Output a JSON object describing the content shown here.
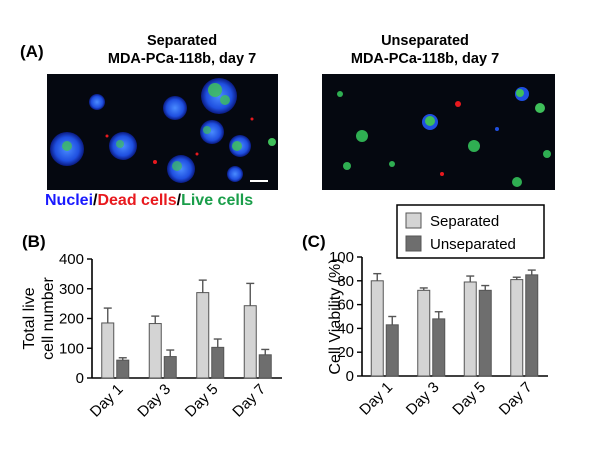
{
  "panel_a": {
    "label": "(A)",
    "left_image": {
      "title_line1": "Separated",
      "title_line2": "MDA-PCa-118b, day 7"
    },
    "right_image": {
      "title_line1": "Unseparated",
      "title_line2": "MDA-PCa-118b, day 7"
    },
    "stain_legend": [
      {
        "text": "Nuclei",
        "color": "#1a1aff"
      },
      {
        "text": "/",
        "color": "#000000"
      },
      {
        "text": "Dead cells",
        "color": "#e8191e"
      },
      {
        "text": "/",
        "color": "#000000"
      },
      {
        "text": "Live cells",
        "color": "#1a9e4a"
      }
    ]
  },
  "panel_b": {
    "label": "(B)"
  },
  "panel_c": {
    "label": "(C)"
  },
  "colors": {
    "separated": "#d4d4d4",
    "unseparated": "#6e6e6e",
    "edge": "#555555"
  },
  "chart_data": [
    {
      "type": "bar",
      "title": "",
      "xlabel": "",
      "ylabel": "Total live cell number",
      "categories": [
        "Day 1",
        "Day 3",
        "Day 5",
        "Day 7"
      ],
      "ylim": [
        0,
        400
      ],
      "yticks": [
        0,
        100,
        200,
        300,
        400
      ],
      "series": [
        {
          "name": "Separated",
          "values": [
            185,
            183,
            287,
            243
          ],
          "error": [
            50,
            25,
            42,
            75
          ]
        },
        {
          "name": "Unseparated",
          "values": [
            60,
            72,
            103,
            78
          ],
          "error": [
            8,
            22,
            28,
            18
          ]
        }
      ]
    },
    {
      "type": "bar",
      "title": "",
      "xlabel": "",
      "ylabel": "Cell Viability (%)",
      "categories": [
        "Day 1",
        "Day 3",
        "Day 5",
        "Day 7"
      ],
      "ylim": [
        0,
        100
      ],
      "yticks": [
        0,
        20,
        40,
        60,
        80,
        100
      ],
      "legend": [
        "Separated",
        "Unseparated"
      ],
      "legend_position": "top",
      "series": [
        {
          "name": "Separated",
          "values": [
            80,
            72,
            79,
            81
          ],
          "error": [
            6,
            2,
            5,
            2
          ]
        },
        {
          "name": "Unseparated",
          "values": [
            43,
            48,
            72,
            85
          ],
          "error": [
            7,
            6,
            4,
            4
          ]
        }
      ]
    }
  ]
}
